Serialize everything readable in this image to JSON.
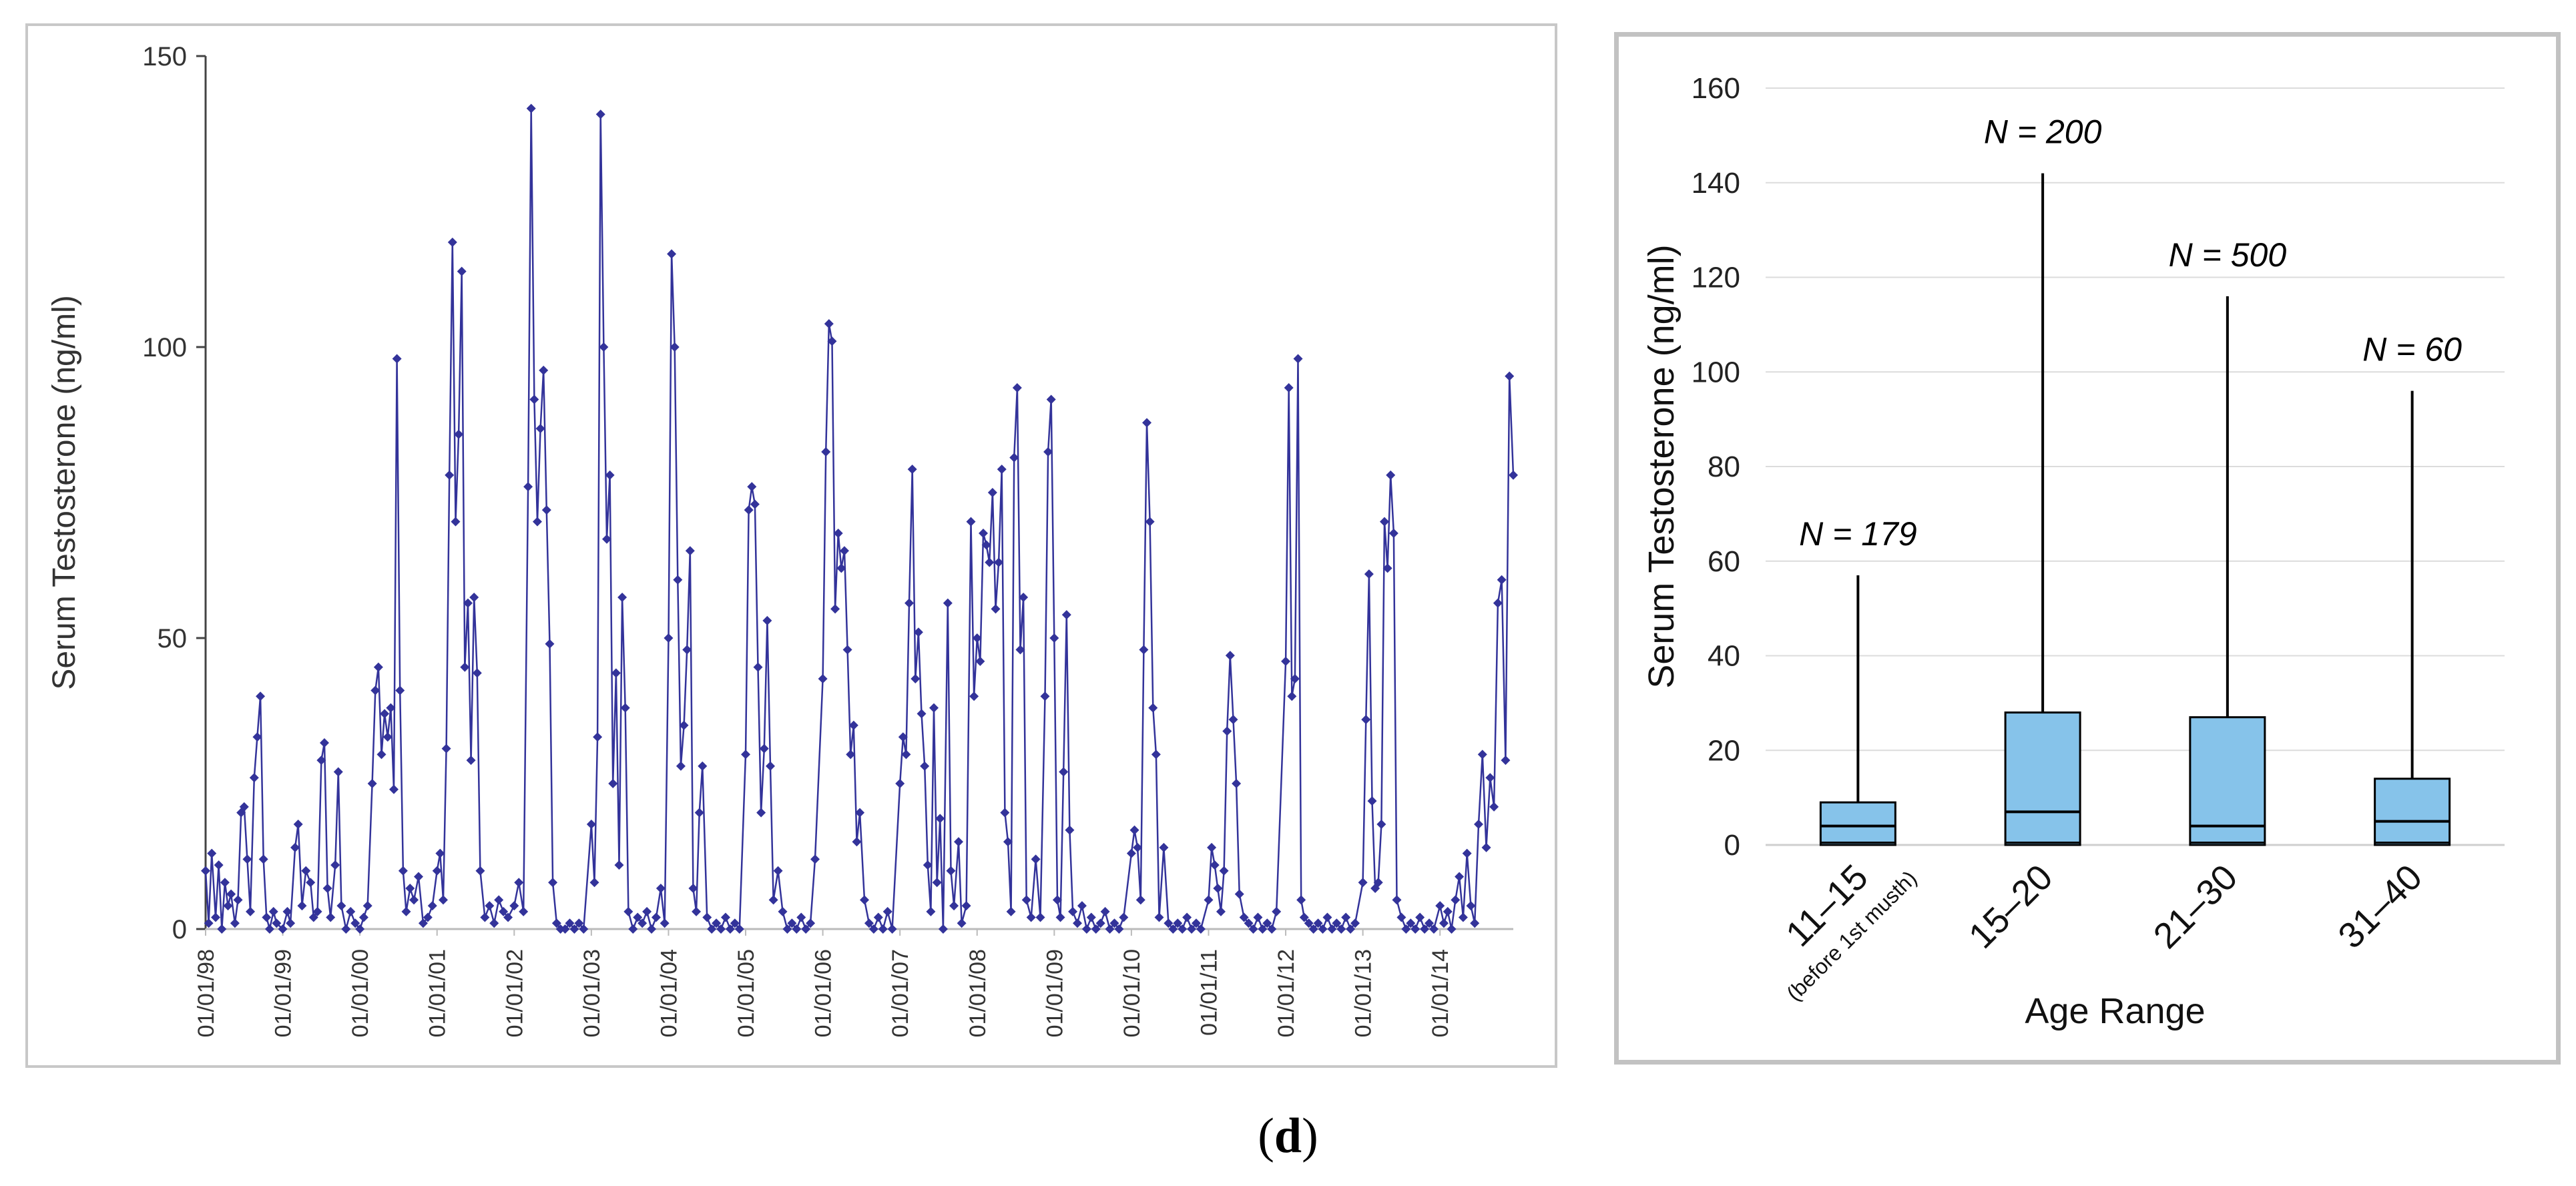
{
  "chart_data": [
    {
      "type": "line",
      "ylabel": "Serum Testosterone  (ng/ml)",
      "ylim": [
        0,
        150
      ],
      "yticks": [
        0,
        50,
        100,
        150
      ],
      "xlabels": [
        "01/01/98",
        "01/01/99",
        "01/01/00",
        "01/01/01",
        "01/01/02",
        "01/01/03",
        "01/01/04",
        "01/01/05",
        "01/01/06",
        "01/01/07",
        "01/01/08",
        "01/01/09",
        "01/01/10",
        "01/01/11",
        "01/01/12",
        "01/01/13",
        "01/01/14"
      ],
      "x_start_year": 1998,
      "x_end_year": 2014.95,
      "color": "#33339a",
      "points": [
        [
          1998.0,
          10
        ],
        [
          1998.04,
          1
        ],
        [
          1998.08,
          13
        ],
        [
          1998.13,
          2
        ],
        [
          1998.17,
          11
        ],
        [
          1998.21,
          0
        ],
        [
          1998.25,
          8
        ],
        [
          1998.29,
          4
        ],
        [
          1998.33,
          6
        ],
        [
          1998.38,
          1
        ],
        [
          1998.42,
          5
        ],
        [
          1998.46,
          20
        ],
        [
          1998.5,
          21
        ],
        [
          1998.54,
          12
        ],
        [
          1998.58,
          3
        ],
        [
          1998.63,
          26
        ],
        [
          1998.67,
          33
        ],
        [
          1998.71,
          40
        ],
        [
          1998.75,
          12
        ],
        [
          1998.79,
          2
        ],
        [
          1998.83,
          0
        ],
        [
          1998.88,
          3
        ],
        [
          1998.92,
          1
        ],
        [
          1999.0,
          0
        ],
        [
          1999.06,
          3
        ],
        [
          1999.1,
          1
        ],
        [
          1999.16,
          14
        ],
        [
          1999.2,
          18
        ],
        [
          1999.25,
          4
        ],
        [
          1999.3,
          10
        ],
        [
          1999.36,
          8
        ],
        [
          1999.4,
          2
        ],
        [
          1999.45,
          3
        ],
        [
          1999.5,
          29
        ],
        [
          1999.54,
          32
        ],
        [
          1999.58,
          7
        ],
        [
          1999.62,
          2
        ],
        [
          1999.68,
          11
        ],
        [
          1999.72,
          27
        ],
        [
          1999.76,
          4
        ],
        [
          1999.82,
          0
        ],
        [
          1999.88,
          3
        ],
        [
          1999.94,
          1
        ],
        [
          2000.0,
          0
        ],
        [
          2000.05,
          2
        ],
        [
          2000.1,
          4
        ],
        [
          2000.16,
          25
        ],
        [
          2000.2,
          41
        ],
        [
          2000.24,
          45
        ],
        [
          2000.28,
          30
        ],
        [
          2000.32,
          37
        ],
        [
          2000.36,
          33
        ],
        [
          2000.4,
          38
        ],
        [
          2000.44,
          24
        ],
        [
          2000.48,
          98
        ],
        [
          2000.52,
          41
        ],
        [
          2000.56,
          10
        ],
        [
          2000.6,
          3
        ],
        [
          2000.65,
          7
        ],
        [
          2000.7,
          5
        ],
        [
          2000.76,
          9
        ],
        [
          2000.82,
          1
        ],
        [
          2000.88,
          2
        ],
        [
          2000.94,
          4
        ],
        [
          2001.0,
          10
        ],
        [
          2001.04,
          13
        ],
        [
          2001.08,
          5
        ],
        [
          2001.12,
          31
        ],
        [
          2001.16,
          78
        ],
        [
          2001.2,
          118
        ],
        [
          2001.24,
          70
        ],
        [
          2001.28,
          85
        ],
        [
          2001.32,
          113
        ],
        [
          2001.36,
          45
        ],
        [
          2001.4,
          56
        ],
        [
          2001.44,
          29
        ],
        [
          2001.48,
          57
        ],
        [
          2001.52,
          44
        ],
        [
          2001.56,
          10
        ],
        [
          2001.62,
          2
        ],
        [
          2001.68,
          4
        ],
        [
          2001.74,
          1
        ],
        [
          2001.8,
          5
        ],
        [
          2001.86,
          3
        ],
        [
          2001.92,
          2
        ],
        [
          2002.0,
          4
        ],
        [
          2002.06,
          8
        ],
        [
          2002.12,
          3
        ],
        [
          2002.18,
          76
        ],
        [
          2002.22,
          141
        ],
        [
          2002.26,
          91
        ],
        [
          2002.3,
          70
        ],
        [
          2002.34,
          86
        ],
        [
          2002.38,
          96
        ],
        [
          2002.42,
          72
        ],
        [
          2002.46,
          49
        ],
        [
          2002.5,
          8
        ],
        [
          2002.55,
          1
        ],
        [
          2002.6,
          0
        ],
        [
          2002.66,
          0
        ],
        [
          2002.72,
          1
        ],
        [
          2002.78,
          0
        ],
        [
          2002.84,
          1
        ],
        [
          2002.9,
          0
        ],
        [
          2003.0,
          18
        ],
        [
          2003.04,
          8
        ],
        [
          2003.08,
          33
        ],
        [
          2003.12,
          140
        ],
        [
          2003.16,
          100
        ],
        [
          2003.2,
          67
        ],
        [
          2003.24,
          78
        ],
        [
          2003.28,
          25
        ],
        [
          2003.32,
          44
        ],
        [
          2003.36,
          11
        ],
        [
          2003.4,
          57
        ],
        [
          2003.44,
          38
        ],
        [
          2003.48,
          3
        ],
        [
          2003.54,
          0
        ],
        [
          2003.6,
          2
        ],
        [
          2003.66,
          1
        ],
        [
          2003.72,
          3
        ],
        [
          2003.78,
          0
        ],
        [
          2003.84,
          2
        ],
        [
          2003.9,
          7
        ],
        [
          2003.95,
          1
        ],
        [
          2004.0,
          50
        ],
        [
          2004.04,
          116
        ],
        [
          2004.08,
          100
        ],
        [
          2004.12,
          60
        ],
        [
          2004.16,
          28
        ],
        [
          2004.2,
          35
        ],
        [
          2004.24,
          48
        ],
        [
          2004.28,
          65
        ],
        [
          2004.32,
          7
        ],
        [
          2004.36,
          3
        ],
        [
          2004.4,
          20
        ],
        [
          2004.44,
          28
        ],
        [
          2004.5,
          2
        ],
        [
          2004.56,
          0
        ],
        [
          2004.62,
          1
        ],
        [
          2004.68,
          0
        ],
        [
          2004.74,
          2
        ],
        [
          2004.8,
          0
        ],
        [
          2004.86,
          1
        ],
        [
          2004.92,
          0
        ],
        [
          2005.0,
          30
        ],
        [
          2005.04,
          72
        ],
        [
          2005.08,
          76
        ],
        [
          2005.12,
          73
        ],
        [
          2005.16,
          45
        ],
        [
          2005.2,
          20
        ],
        [
          2005.24,
          31
        ],
        [
          2005.28,
          53
        ],
        [
          2005.32,
          28
        ],
        [
          2005.36,
          5
        ],
        [
          2005.42,
          10
        ],
        [
          2005.48,
          3
        ],
        [
          2005.54,
          0
        ],
        [
          2005.6,
          1
        ],
        [
          2005.66,
          0
        ],
        [
          2005.72,
          2
        ],
        [
          2005.78,
          0
        ],
        [
          2005.84,
          1
        ],
        [
          2005.9,
          12
        ],
        [
          2006.0,
          43
        ],
        [
          2006.04,
          82
        ],
        [
          2006.08,
          104
        ],
        [
          2006.12,
          101
        ],
        [
          2006.16,
          55
        ],
        [
          2006.2,
          68
        ],
        [
          2006.24,
          62
        ],
        [
          2006.28,
          65
        ],
        [
          2006.32,
          48
        ],
        [
          2006.36,
          30
        ],
        [
          2006.4,
          35
        ],
        [
          2006.44,
          15
        ],
        [
          2006.48,
          20
        ],
        [
          2006.54,
          5
        ],
        [
          2006.6,
          1
        ],
        [
          2006.66,
          0
        ],
        [
          2006.72,
          2
        ],
        [
          2006.78,
          0
        ],
        [
          2006.84,
          3
        ],
        [
          2006.9,
          0
        ],
        [
          2007.0,
          25
        ],
        [
          2007.04,
          33
        ],
        [
          2007.08,
          30
        ],
        [
          2007.12,
          56
        ],
        [
          2007.16,
          79
        ],
        [
          2007.2,
          43
        ],
        [
          2007.24,
          51
        ],
        [
          2007.28,
          37
        ],
        [
          2007.32,
          28
        ],
        [
          2007.36,
          11
        ],
        [
          2007.4,
          3
        ],
        [
          2007.44,
          38
        ],
        [
          2007.48,
          8
        ],
        [
          2007.52,
          19
        ],
        [
          2007.56,
          0
        ],
        [
          2007.62,
          56
        ],
        [
          2007.66,
          10
        ],
        [
          2007.7,
          4
        ],
        [
          2007.76,
          15
        ],
        [
          2007.8,
          1
        ],
        [
          2007.86,
          4
        ],
        [
          2007.92,
          70
        ],
        [
          2007.96,
          40
        ],
        [
          2008.0,
          50
        ],
        [
          2008.04,
          46
        ],
        [
          2008.08,
          68
        ],
        [
          2008.12,
          66
        ],
        [
          2008.16,
          63
        ],
        [
          2008.2,
          75
        ],
        [
          2008.24,
          55
        ],
        [
          2008.28,
          63
        ],
        [
          2008.32,
          79
        ],
        [
          2008.36,
          20
        ],
        [
          2008.4,
          15
        ],
        [
          2008.44,
          3
        ],
        [
          2008.48,
          81
        ],
        [
          2008.52,
          93
        ],
        [
          2008.56,
          48
        ],
        [
          2008.6,
          57
        ],
        [
          2008.64,
          5
        ],
        [
          2008.7,
          2
        ],
        [
          2008.76,
          12
        ],
        [
          2008.82,
          2
        ],
        [
          2008.88,
          40
        ],
        [
          2008.92,
          82
        ],
        [
          2008.96,
          91
        ],
        [
          2009.0,
          50
        ],
        [
          2009.04,
          5
        ],
        [
          2009.08,
          2
        ],
        [
          2009.12,
          27
        ],
        [
          2009.16,
          54
        ],
        [
          2009.2,
          17
        ],
        [
          2009.24,
          3
        ],
        [
          2009.3,
          1
        ],
        [
          2009.36,
          4
        ],
        [
          2009.42,
          0
        ],
        [
          2009.48,
          2
        ],
        [
          2009.54,
          0
        ],
        [
          2009.6,
          1
        ],
        [
          2009.66,
          3
        ],
        [
          2009.72,
          0
        ],
        [
          2009.78,
          1
        ],
        [
          2009.84,
          0
        ],
        [
          2009.9,
          2
        ],
        [
          2010.0,
          13
        ],
        [
          2010.04,
          17
        ],
        [
          2010.08,
          14
        ],
        [
          2010.12,
          5
        ],
        [
          2010.16,
          48
        ],
        [
          2010.2,
          87
        ],
        [
          2010.24,
          70
        ],
        [
          2010.28,
          38
        ],
        [
          2010.32,
          30
        ],
        [
          2010.36,
          2
        ],
        [
          2010.42,
          14
        ],
        [
          2010.48,
          1
        ],
        [
          2010.54,
          0
        ],
        [
          2010.6,
          1
        ],
        [
          2010.66,
          0
        ],
        [
          2010.72,
          2
        ],
        [
          2010.78,
          0
        ],
        [
          2010.84,
          1
        ],
        [
          2010.9,
          0
        ],
        [
          2011.0,
          5
        ],
        [
          2011.04,
          14
        ],
        [
          2011.08,
          11
        ],
        [
          2011.12,
          7
        ],
        [
          2011.16,
          3
        ],
        [
          2011.2,
          10
        ],
        [
          2011.24,
          34
        ],
        [
          2011.28,
          47
        ],
        [
          2011.32,
          36
        ],
        [
          2011.36,
          25
        ],
        [
          2011.4,
          6
        ],
        [
          2011.46,
          2
        ],
        [
          2011.52,
          1
        ],
        [
          2011.58,
          0
        ],
        [
          2011.64,
          2
        ],
        [
          2011.7,
          0
        ],
        [
          2011.76,
          1
        ],
        [
          2011.82,
          0
        ],
        [
          2011.88,
          3
        ],
        [
          2012.0,
          46
        ],
        [
          2012.04,
          93
        ],
        [
          2012.08,
          40
        ],
        [
          2012.12,
          43
        ],
        [
          2012.16,
          98
        ],
        [
          2012.2,
          5
        ],
        [
          2012.24,
          2
        ],
        [
          2012.3,
          1
        ],
        [
          2012.36,
          0
        ],
        [
          2012.42,
          1
        ],
        [
          2012.48,
          0
        ],
        [
          2012.54,
          2
        ],
        [
          2012.6,
          0
        ],
        [
          2012.66,
          1
        ],
        [
          2012.72,
          0
        ],
        [
          2012.78,
          2
        ],
        [
          2012.84,
          0
        ],
        [
          2012.9,
          1
        ],
        [
          2013.0,
          8
        ],
        [
          2013.04,
          36
        ],
        [
          2013.08,
          61
        ],
        [
          2013.12,
          22
        ],
        [
          2013.16,
          7
        ],
        [
          2013.2,
          8
        ],
        [
          2013.24,
          18
        ],
        [
          2013.28,
          70
        ],
        [
          2013.32,
          62
        ],
        [
          2013.36,
          78
        ],
        [
          2013.4,
          68
        ],
        [
          2013.44,
          5
        ],
        [
          2013.5,
          2
        ],
        [
          2013.56,
          0
        ],
        [
          2013.62,
          1
        ],
        [
          2013.68,
          0
        ],
        [
          2013.74,
          2
        ],
        [
          2013.8,
          0
        ],
        [
          2013.86,
          1
        ],
        [
          2013.92,
          0
        ],
        [
          2014.0,
          4
        ],
        [
          2014.05,
          1
        ],
        [
          2014.1,
          3
        ],
        [
          2014.15,
          0
        ],
        [
          2014.2,
          5
        ],
        [
          2014.25,
          9
        ],
        [
          2014.3,
          2
        ],
        [
          2014.35,
          13
        ],
        [
          2014.4,
          4
        ],
        [
          2014.45,
          1
        ],
        [
          2014.5,
          18
        ],
        [
          2014.55,
          30
        ],
        [
          2014.6,
          14
        ],
        [
          2014.65,
          26
        ],
        [
          2014.7,
          21
        ],
        [
          2014.75,
          56
        ],
        [
          2014.8,
          60
        ],
        [
          2014.85,
          29
        ],
        [
          2014.9,
          95
        ],
        [
          2014.95,
          78
        ]
      ]
    },
    {
      "type": "box",
      "ylabel": "Serum Testosterone (ng/ml)",
      "xlabel": "Age Range",
      "ylim": [
        0,
        160
      ],
      "yticks": [
        0,
        20,
        40,
        60,
        80,
        100,
        120,
        140,
        160
      ],
      "color": "#86c3ea",
      "boxes": [
        {
          "label": "11–15",
          "sublabel": "(before 1st musth)",
          "n_label": "N = 179",
          "min": 0,
          "q1": 0.5,
          "median": 4,
          "q3": 9,
          "max": 57
        },
        {
          "label": "15–20",
          "sublabel": "",
          "n_label": "N = 200",
          "min": 0,
          "q1": 0.5,
          "median": 7,
          "q3": 28,
          "max": 142
        },
        {
          "label": "21–30",
          "sublabel": "",
          "n_label": "N = 500",
          "min": 0,
          "q1": 0.5,
          "median": 4,
          "q3": 27,
          "max": 116
        },
        {
          "label": "31–40",
          "sublabel": "",
          "n_label": "N = 60",
          "min": 0,
          "q1": 0.5,
          "median": 5,
          "q3": 14,
          "max": 96
        }
      ]
    }
  ],
  "caption": {
    "open": "(",
    "letter": "d",
    "close": ")"
  }
}
